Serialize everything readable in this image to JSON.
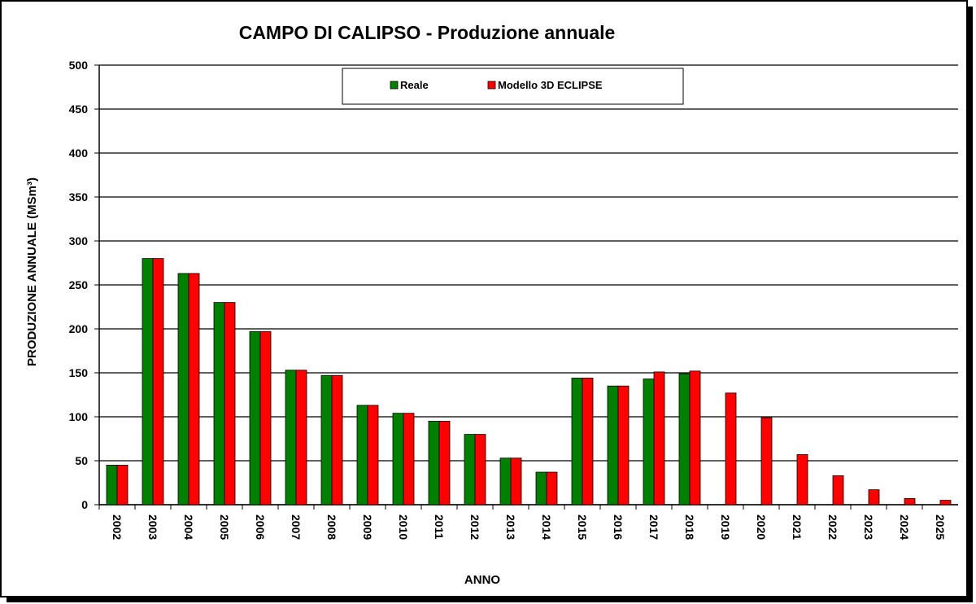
{
  "chart_data": {
    "type": "bar",
    "title": "CAMPO DI CALIPSO - Produzione annuale",
    "x_label": "ANNO",
    "y_label": "PRODUZIONE  ANNUALE  (MSm³)",
    "categories": [
      "2002",
      "2003",
      "2004",
      "2005",
      "2006",
      "2007",
      "2008",
      "2009",
      "2010",
      "2011",
      "2012",
      "2013",
      "2014",
      "2015",
      "2016",
      "2017",
      "2018",
      "2019",
      "2020",
      "2021",
      "2022",
      "2023",
      "2024",
      "2025"
    ],
    "series": [
      {
        "name": "Reale",
        "color": "#008000",
        "values": [
          45,
          280,
          263,
          230,
          197,
          153,
          147,
          113,
          104,
          95,
          80,
          53,
          37,
          144,
          135,
          143,
          149,
          null,
          null,
          null,
          null,
          null,
          null,
          null
        ]
      },
      {
        "name": "Modello 3D ECLIPSE",
        "color": "#ff0000",
        "values": [
          45,
          280,
          263,
          230,
          197,
          153,
          147,
          113,
          104,
          95,
          80,
          53,
          37,
          144,
          135,
          151,
          152,
          127,
          99,
          57,
          33,
          17,
          7,
          5
        ]
      }
    ],
    "ylim": [
      0,
      500
    ],
    "yticks": [
      0,
      50,
      100,
      150,
      200,
      250,
      300,
      350,
      400,
      450,
      500
    ],
    "grid": true,
    "legend": "top"
  }
}
